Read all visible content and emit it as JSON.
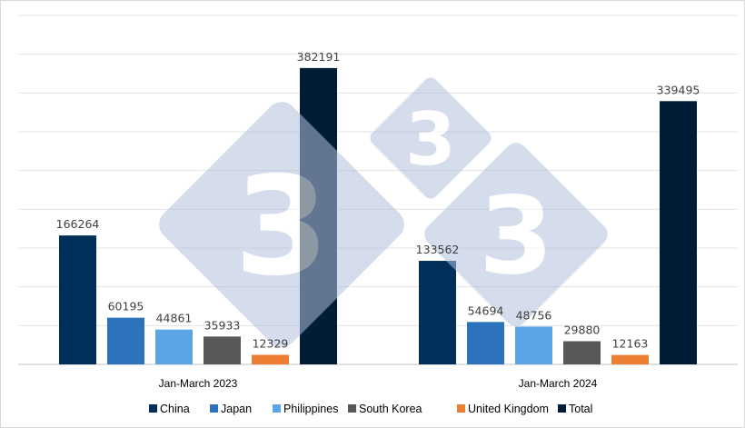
{
  "chart_data": {
    "type": "bar",
    "title": "",
    "xlabel": "",
    "ylabel": "",
    "ylim": [
      0,
      450000
    ],
    "grid": true,
    "legend_position": "bottom",
    "categories": [
      "Jan-March 2023",
      "Jan-March 2024"
    ],
    "series": [
      {
        "name": "China",
        "values": [
          166264,
          133562
        ],
        "color": "#00305A"
      },
      {
        "name": "Japan",
        "values": [
          60195,
          54694
        ],
        "color": "#2C73BC"
      },
      {
        "name": "Philippines",
        "values": [
          44861,
          48756
        ],
        "color": "#5BA4E6"
      },
      {
        "name": "South Korea",
        "values": [
          35933,
          29880
        ],
        "color": "#585858"
      },
      {
        "name": "United Kingdom",
        "values": [
          12329,
          12163
        ],
        "color": "#ED7D31"
      },
      {
        "name": "Total",
        "values": [
          382191,
          339495
        ],
        "color": "#001D38"
      }
    ]
  },
  "watermark": {
    "text": "3",
    "color": "#B3C0DC"
  }
}
